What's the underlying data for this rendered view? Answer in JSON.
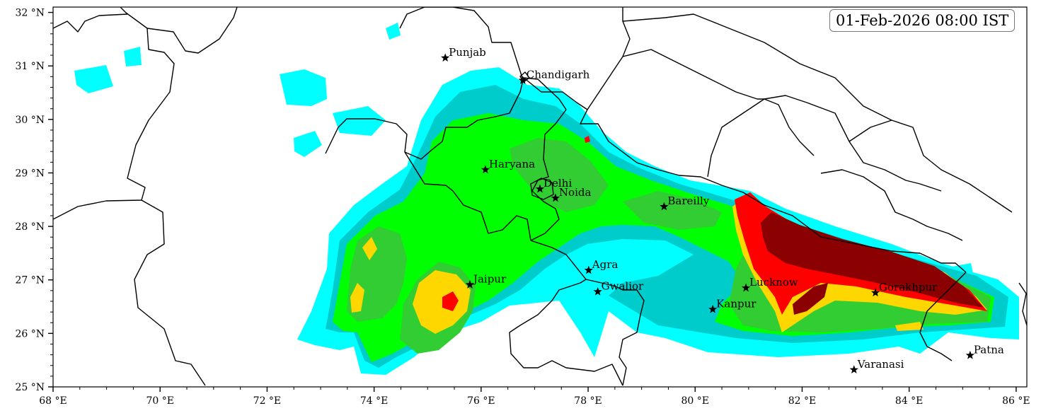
{
  "timestamp": "01-Feb-2026 08:00 IST",
  "map": {
    "lon_range": [
      68,
      86.2
    ],
    "lat_range": [
      25,
      32.1
    ],
    "lon_ticks": [
      {
        "value": 68,
        "label": "68 °E"
      },
      {
        "value": 70,
        "label": "70 °E"
      },
      {
        "value": 72,
        "label": "72 °E"
      },
      {
        "value": 74,
        "label": "74 °E"
      },
      {
        "value": 76,
        "label": "76 °E"
      },
      {
        "value": 78,
        "label": "78 °E"
      },
      {
        "value": 80,
        "label": "80 °E"
      },
      {
        "value": 82,
        "label": "82 °E"
      },
      {
        "value": 84,
        "label": "84 °E"
      },
      {
        "value": 86,
        "label": "86 °E"
      }
    ],
    "lat_ticks": [
      {
        "value": 25,
        "label": "25 °N"
      },
      {
        "value": 26,
        "label": "26 °N"
      },
      {
        "value": 27,
        "label": "27 °N"
      },
      {
        "value": 28,
        "label": "28 °N"
      },
      {
        "value": 29,
        "label": "29 °N"
      },
      {
        "value": 30,
        "label": "30 °N"
      },
      {
        "value": 31,
        "label": "31 °N"
      },
      {
        "value": 32,
        "label": "32 °N"
      }
    ]
  },
  "cities": [
    {
      "name": "Punjab",
      "lon": 75.33,
      "lat": 31.15
    },
    {
      "name": "Chandigarh",
      "lon": 76.78,
      "lat": 30.73
    },
    {
      "name": "Haryana",
      "lon": 76.08,
      "lat": 29.06
    },
    {
      "name": "Delhi",
      "lon": 77.1,
      "lat": 28.7
    },
    {
      "name": "Noida",
      "lon": 77.39,
      "lat": 28.53
    },
    {
      "name": "Bareilly",
      "lon": 79.42,
      "lat": 28.37
    },
    {
      "name": "Agra",
      "lon": 78.01,
      "lat": 27.18
    },
    {
      "name": "Jaipur",
      "lon": 75.79,
      "lat": 26.91
    },
    {
      "name": "Gwalior",
      "lon": 78.18,
      "lat": 26.78
    },
    {
      "name": "Lucknow",
      "lon": 80.95,
      "lat": 26.85
    },
    {
      "name": "Kanpur",
      "lon": 80.33,
      "lat": 26.45
    },
    {
      "name": "Gorakhpur",
      "lon": 83.37,
      "lat": 26.76
    },
    {
      "name": "Varanasi",
      "lon": 82.97,
      "lat": 25.32
    },
    {
      "name": "Patna",
      "lon": 85.14,
      "lat": 25.59
    }
  ],
  "colors": {
    "level1": "#00ffff",
    "level2": "#00cccc",
    "level3": "#00ff00",
    "level4": "#32cd32",
    "level5": "#ffd700",
    "level6": "#ff0000",
    "level7": "#8b0000",
    "boundary": "#000000"
  }
}
